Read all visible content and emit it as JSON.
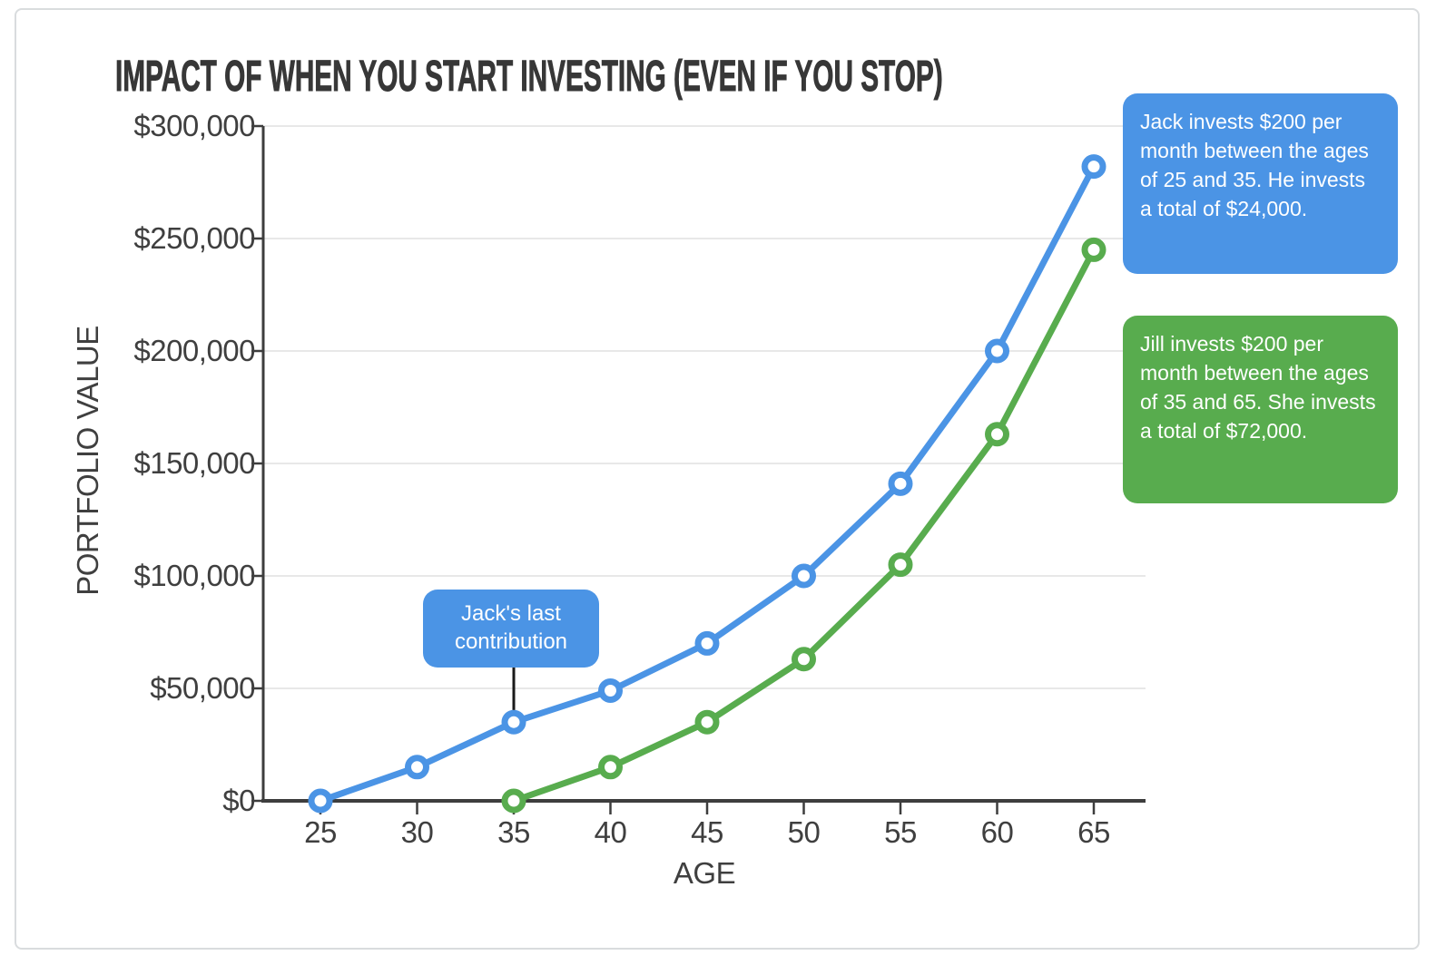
{
  "title": "IMPACT OF WHEN YOU START INVESTING (EVEN IF YOU STOP)",
  "colors": {
    "jack_blue": "#4b94e5",
    "jill_green": "#58ac4e",
    "grid": "#e8e8e8",
    "axis": "#3d3d3d",
    "text": "#3f3f3f",
    "connector_black": "#1a1a1a",
    "card_border": "#d9dcde"
  },
  "annotations": {
    "jack_box": "Jack invests $200 per month between the ages of 25 and 35. He invests a total of $24,000.",
    "jill_box": "Jill invests $200 per month between the ages of 35 and 65. She invests a total of $72,000.",
    "callout": "Jack's last contribution"
  },
  "chart_data": {
    "type": "line",
    "title": "IMPACT OF WHEN YOU START INVESTING (EVEN IF YOU STOP)",
    "xlabel": "AGE",
    "ylabel": "PORTFOLIO VALUE",
    "x": [
      25,
      30,
      35,
      40,
      45,
      50,
      55,
      60,
      65
    ],
    "x_tick_labels": [
      "25",
      "30",
      "35",
      "40",
      "45",
      "50",
      "55",
      "60",
      "65"
    ],
    "y_ticks": [
      0,
      50000,
      100000,
      150000,
      200000,
      250000,
      300000
    ],
    "y_tick_labels": [
      "$0",
      "$50,000",
      "$100,000",
      "$150,000",
      "$200,000",
      "$250,000",
      "$300,000"
    ],
    "xlim": [
      25,
      65
    ],
    "ylim": [
      0,
      300000
    ],
    "grid": "horizontal",
    "legend": "none",
    "marker": "open-circle",
    "series": [
      {
        "name": "Jack",
        "color": "#4b94e5",
        "values": [
          0,
          15000,
          35000,
          49000,
          70000,
          100000,
          141000,
          200000,
          282000
        ]
      },
      {
        "name": "Jill",
        "color": "#58ac4e",
        "values": [
          null,
          null,
          0,
          15000,
          35000,
          63000,
          105000,
          163000,
          245000
        ]
      }
    ],
    "point_annotations": [
      {
        "text": "Jack's last contribution",
        "series": "Jack",
        "x": 35,
        "y": 35000
      }
    ]
  }
}
